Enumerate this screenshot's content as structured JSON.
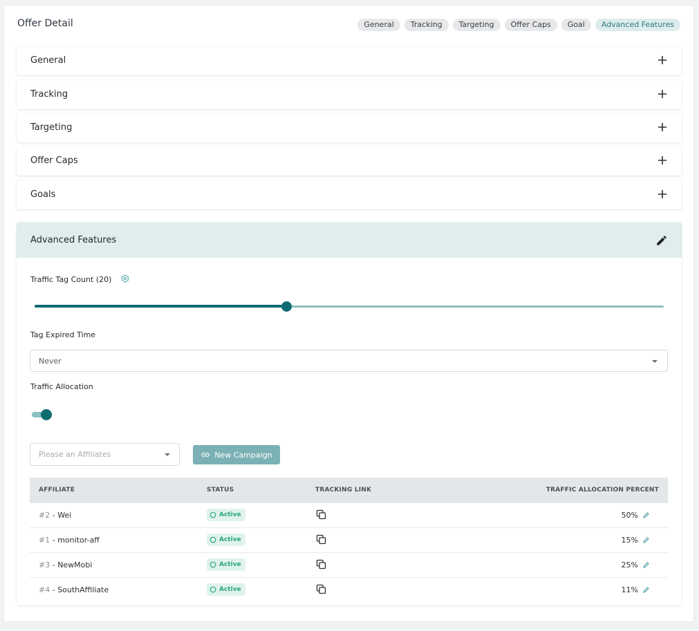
{
  "header": {
    "title": "Offer Detail",
    "chips": [
      "General",
      "Tracking",
      "Targeting",
      "Offer Caps",
      "Goal",
      "Advanced Features"
    ],
    "active_chip": "Advanced Features"
  },
  "sections": [
    "General",
    "Tracking",
    "Targeting",
    "Offer Caps",
    "Goals"
  ],
  "advanced": {
    "title": "Advanced Features",
    "traffic_tag_count_label": "Traffic Tag Count (20)",
    "traffic_tag_level": 0.4,
    "tag_expired_time_label": "Tag Expired Time",
    "tag_expired_time_value": "Never",
    "traffic_allocation_label": "Traffic Allocation",
    "traffic_allocation_on": true,
    "affiliate_placeholder": "Please an Affiliates",
    "new_campaign_label": "New Campaign"
  },
  "table": {
    "columns": [
      "AFFILIATE",
      "STATUS",
      "TRACKING LINK",
      "TRAFFIC ALLOCATION PERCENT"
    ],
    "rows": [
      {
        "id": "#2",
        "name": "Wei",
        "status": "Active",
        "percent": "50%"
      },
      {
        "id": "#1",
        "name": "monitor-aff",
        "status": "Active",
        "percent": "15%"
      },
      {
        "id": "#3",
        "name": "NewMobi",
        "status": "Active",
        "percent": "25%"
      },
      {
        "id": "#4",
        "name": "SouthAffiliate",
        "status": "Active",
        "percent": "11%"
      }
    ]
  },
  "colors": {
    "primary": "#0e6b72",
    "primary_light": "#8bbfc2",
    "button": "#7bb1b5",
    "active_badge_bg": "#dff3ec",
    "active_badge_text": "#2aa579",
    "section_head_bg": "#e0eced"
  },
  "icons": {
    "section_toggle": "plus-icon",
    "edit": "pencil-icon",
    "info": "hexagon-info-icon",
    "link": "link-icon",
    "copy": "copy-icon",
    "status": "circle-icon"
  }
}
